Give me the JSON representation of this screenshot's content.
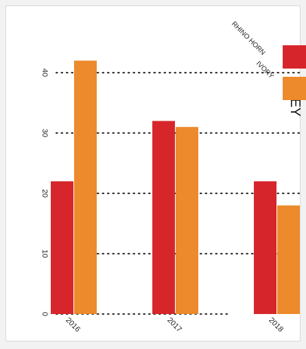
{
  "chart_data": {
    "type": "bar",
    "title": "",
    "xlabel": "",
    "ylabel": "",
    "categories": [
      "2016",
      "2017",
      "2018"
    ],
    "series": [
      {
        "name": "RHINO HORN",
        "color": "#d7262b",
        "values": [
          22,
          32,
          22
        ]
      },
      {
        "name": "IVORY",
        "color": "#ec8a2c",
        "values": [
          42,
          31,
          18
        ]
      }
    ],
    "ylim": [
      0,
      45
    ],
    "yticks": [
      0,
      10,
      20,
      30,
      40
    ],
    "grid": "dotted horizontal",
    "legend": {
      "title": "KEY",
      "placement": "top-right"
    },
    "orientation": "rotated 90 degrees clockwise"
  }
}
